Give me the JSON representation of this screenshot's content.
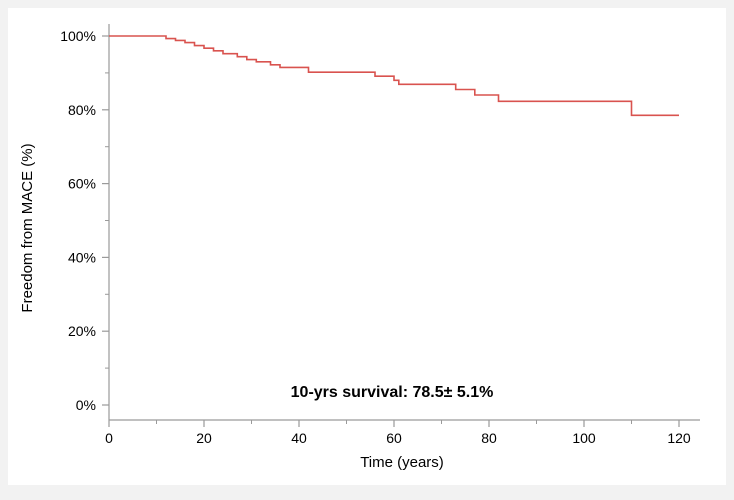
{
  "chart_data": {
    "type": "line",
    "step": true,
    "xlabel": "Time (years)",
    "ylabel": "Freedom from MACE (%)",
    "xlim": [
      0,
      120
    ],
    "ylim": [
      0,
      100
    ],
    "x_ticks": [
      0,
      20,
      40,
      60,
      80,
      100,
      120
    ],
    "x_tick_labels": [
      "0",
      "20",
      "40",
      "60",
      "80",
      "100",
      "120"
    ],
    "x_minor_ticks": [
      10,
      30,
      50,
      70,
      90,
      110
    ],
    "y_ticks": [
      0,
      20,
      40,
      60,
      80,
      100
    ],
    "y_tick_labels": [
      "0%",
      "20%",
      "40%",
      "60%",
      "80%",
      "100%"
    ],
    "y_minor_ticks": [
      10,
      30,
      50,
      70,
      90
    ],
    "grid": false,
    "annotation": "10-yrs survival: 78.5± 5.1%",
    "series": [
      {
        "color": "#d9534f",
        "x": [
          0,
          12,
          14,
          16,
          18,
          20,
          22,
          24,
          27,
          29,
          31,
          34,
          36,
          42,
          56,
          60,
          61,
          73,
          77,
          82,
          110,
          120
        ],
        "y": [
          100,
          99.3,
          98.8,
          98.2,
          97.4,
          96.7,
          96.0,
          95.2,
          94.4,
          93.6,
          93.0,
          92.2,
          91.5,
          90.2,
          89.1,
          88.0,
          86.9,
          85.5,
          84.0,
          82.3,
          78.5,
          78.5
        ]
      }
    ]
  }
}
